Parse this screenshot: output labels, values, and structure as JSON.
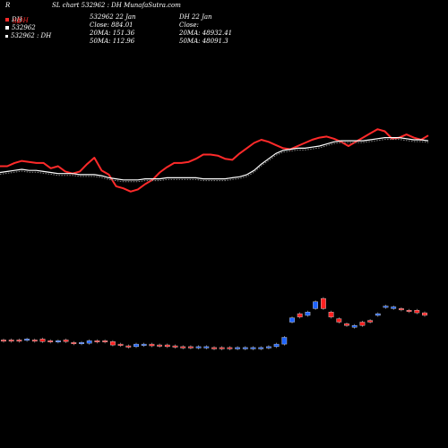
{
  "header": {
    "corner": "R",
    "title": "SL chart 532962 : DH MunafaSutra.com",
    "legend": [
      {
        "label": "DH",
        "color": "#ff2a2a"
      },
      {
        "label": "532962",
        "color": "#ffffff"
      },
      {
        "label": "532962 : DH",
        "color": "#ffffff"
      }
    ],
    "mid_block": [
      "532962  22 Jan",
      "Close: 884.01",
      "20MA: 151.36",
      "50MA: 112.96"
    ],
    "right_block": [
      "DH 22 Jan",
      "Close:",
      "20MA: 48932.41",
      "50MA: 48091.3"
    ],
    "overlay_labels": [
      "SL",
      "DH"
    ]
  },
  "chart_data": {
    "type": "line",
    "title": "SL chart 532962 : DH MunafaSutra.com",
    "x_count": 60,
    "series": [
      {
        "name": "DH",
        "color": "#ff2a2a",
        "values": [
          0.53,
          0.53,
          0.56,
          0.58,
          0.57,
          0.56,
          0.56,
          0.51,
          0.53,
          0.48,
          0.46,
          0.48,
          0.55,
          0.61,
          0.49,
          0.45,
          0.34,
          0.32,
          0.29,
          0.31,
          0.36,
          0.4,
          0.47,
          0.52,
          0.56,
          0.56,
          0.57,
          0.6,
          0.64,
          0.64,
          0.63,
          0.6,
          0.59,
          0.65,
          0.7,
          0.75,
          0.78,
          0.76,
          0.73,
          0.7,
          0.69,
          0.72,
          0.75,
          0.78,
          0.8,
          0.81,
          0.79,
          0.76,
          0.72,
          0.76,
          0.8,
          0.84,
          0.88,
          0.86,
          0.79,
          0.8,
          0.83,
          0.8,
          0.78,
          0.82
        ]
      },
      {
        "name": "DH 20MA",
        "color": "#ffffff",
        "values": [
          0.47,
          0.48,
          0.49,
          0.5,
          0.49,
          0.49,
          0.48,
          0.47,
          0.46,
          0.46,
          0.46,
          0.45,
          0.45,
          0.45,
          0.44,
          0.42,
          0.41,
          0.4,
          0.4,
          0.4,
          0.41,
          0.41,
          0.41,
          0.42,
          0.42,
          0.42,
          0.42,
          0.42,
          0.41,
          0.41,
          0.41,
          0.41,
          0.42,
          0.43,
          0.45,
          0.49,
          0.55,
          0.6,
          0.65,
          0.68,
          0.69,
          0.7,
          0.7,
          0.71,
          0.72,
          0.74,
          0.76,
          0.77,
          0.77,
          0.77,
          0.77,
          0.78,
          0.79,
          0.8,
          0.8,
          0.8,
          0.79,
          0.78,
          0.78,
          0.77
        ]
      }
    ],
    "candles_series": "532962",
    "candles": [
      {
        "o": 0.42,
        "c": 0.43,
        "up": false
      },
      {
        "o": 0.43,
        "c": 0.42,
        "up": false
      },
      {
        "o": 0.42,
        "c": 0.43,
        "up": false
      },
      {
        "o": 0.43,
        "c": 0.44,
        "up": true
      },
      {
        "o": 0.43,
        "c": 0.42,
        "up": false
      },
      {
        "o": 0.44,
        "c": 0.41,
        "up": false
      },
      {
        "o": 0.42,
        "c": 0.41,
        "up": false
      },
      {
        "o": 0.41,
        "c": 0.42,
        "up": true
      },
      {
        "o": 0.43,
        "c": 0.41,
        "up": false
      },
      {
        "o": 0.4,
        "c": 0.39,
        "up": false
      },
      {
        "o": 0.39,
        "c": 0.4,
        "up": true
      },
      {
        "o": 0.39,
        "c": 0.42,
        "up": true
      },
      {
        "o": 0.42,
        "c": 0.41,
        "up": false
      },
      {
        "o": 0.41,
        "c": 0.42,
        "up": false
      },
      {
        "o": 0.41,
        "c": 0.37,
        "up": false
      },
      {
        "o": 0.38,
        "c": 0.37,
        "up": false
      },
      {
        "o": 0.35,
        "c": 0.36,
        "up": false
      },
      {
        "o": 0.35,
        "c": 0.38,
        "up": true
      },
      {
        "o": 0.37,
        "c": 0.38,
        "up": true
      },
      {
        "o": 0.38,
        "c": 0.36,
        "up": false
      },
      {
        "o": 0.36,
        "c": 0.37,
        "up": false
      },
      {
        "o": 0.37,
        "c": 0.35,
        "up": false
      },
      {
        "o": 0.35,
        "c": 0.36,
        "up": false
      },
      {
        "o": 0.35,
        "c": 0.35,
        "up": false
      },
      {
        "o": 0.34,
        "c": 0.35,
        "up": false
      },
      {
        "o": 0.34,
        "c": 0.35,
        "up": true
      },
      {
        "o": 0.34,
        "c": 0.35,
        "up": true
      },
      {
        "o": 0.33,
        "c": 0.34,
        "up": false
      },
      {
        "o": 0.33,
        "c": 0.34,
        "up": false
      },
      {
        "o": 0.33,
        "c": 0.34,
        "up": false
      },
      {
        "o": 0.33,
        "c": 0.34,
        "up": true
      },
      {
        "o": 0.33,
        "c": 0.34,
        "up": true
      },
      {
        "o": 0.34,
        "c": 0.34,
        "up": true
      },
      {
        "o": 0.34,
        "c": 0.34,
        "up": true
      },
      {
        "o": 0.34,
        "c": 0.35,
        "up": true
      },
      {
        "o": 0.35,
        "c": 0.38,
        "up": true
      },
      {
        "o": 0.38,
        "c": 0.46,
        "up": true
      },
      {
        "o": 0.64,
        "c": 0.69,
        "up": true
      },
      {
        "o": 0.7,
        "c": 0.74,
        "up": false
      },
      {
        "o": 0.72,
        "c": 0.76,
        "up": true
      },
      {
        "o": 0.8,
        "c": 0.88,
        "up": true
      },
      {
        "o": 0.92,
        "c": 0.8,
        "up": false
      },
      {
        "o": 0.76,
        "c": 0.7,
        "up": false
      },
      {
        "o": 0.68,
        "c": 0.64,
        "up": false
      },
      {
        "o": 0.62,
        "c": 0.6,
        "up": false
      },
      {
        "o": 0.6,
        "c": 0.58,
        "up": true
      },
      {
        "o": 0.6,
        "c": 0.64,
        "up": false
      },
      {
        "o": 0.64,
        "c": 0.66,
        "up": false
      },
      {
        "o": 0.72,
        "c": 0.74,
        "up": true
      },
      {
        "o": 0.82,
        "c": 0.83,
        "up": true
      },
      {
        "o": 0.82,
        "c": 0.8,
        "up": true
      },
      {
        "o": 0.8,
        "c": 0.79,
        "up": false
      },
      {
        "o": 0.78,
        "c": 0.77,
        "up": false
      },
      {
        "o": 0.78,
        "c": 0.75,
        "up": false
      },
      {
        "o": 0.75,
        "c": 0.72,
        "up": false
      }
    ],
    "grid": false,
    "legend_position": "top-left"
  }
}
